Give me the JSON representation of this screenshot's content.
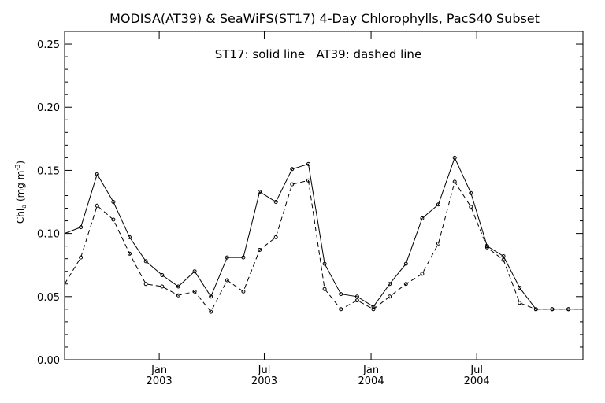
{
  "chart_data": {
    "type": "line",
    "title": "MODISA(AT39) & SeaWiFS(ST17) 4-Day Chlorophylls, PacS40 Subset",
    "annotation": "ST17: solid line   AT39: dashed line",
    "ylabel": {
      "main": "Chl",
      "sub": "a",
      "mid": " (mg m",
      "sup": "-3",
      "end": ")"
    },
    "ylim": [
      0.0,
      0.26
    ],
    "yticks": [
      "0.00",
      "0.05",
      "0.10",
      "0.15",
      "0.20",
      "0.25"
    ],
    "xlim": [
      "2002-07-22",
      "2004-12-31"
    ],
    "xticks": [
      {
        "date": "2003-01-01",
        "month": "Jan",
        "year": "2003"
      },
      {
        "date": "2003-07-01",
        "month": "Jul",
        "year": "2003"
      },
      {
        "date": "2004-01-01",
        "month": "Jan",
        "year": "2004"
      },
      {
        "date": "2004-07-01",
        "month": "Jul",
        "year": "2004"
      }
    ],
    "grid": false,
    "series": [
      {
        "name": "ST17",
        "color": "#000000",
        "dash": "solid",
        "x": [
          "2002-07-22",
          "2002-08-19",
          "2002-09-16",
          "2002-10-14",
          "2002-11-11",
          "2002-12-09",
          "2003-01-06",
          "2003-02-03",
          "2003-03-03",
          "2003-03-31",
          "2003-04-28",
          "2003-05-26",
          "2003-06-23",
          "2003-07-21",
          "2003-08-18",
          "2003-09-15",
          "2003-10-13",
          "2003-11-10",
          "2003-12-08",
          "2004-01-05",
          "2004-02-02",
          "2004-03-01",
          "2004-03-29",
          "2004-04-26",
          "2004-05-24",
          "2004-06-21",
          "2004-07-19",
          "2004-08-16",
          "2004-09-13",
          "2004-10-11",
          "2004-11-08",
          "2004-12-06",
          "2004-12-31"
        ],
        "values": [
          0.1,
          0.105,
          0.147,
          0.125,
          0.097,
          0.078,
          0.067,
          0.058,
          0.07,
          0.05,
          0.081,
          0.081,
          0.133,
          0.125,
          0.151,
          0.155,
          0.076,
          0.052,
          0.05,
          0.042,
          0.06,
          0.076,
          0.112,
          0.123,
          0.16,
          0.132,
          0.09,
          0.082,
          0.057,
          0.04,
          0.04,
          0.04,
          0.04
        ]
      },
      {
        "name": "AT39",
        "color": "#000000",
        "dash": "dashed",
        "x": [
          "2002-07-22",
          "2002-08-19",
          "2002-09-16",
          "2002-10-14",
          "2002-11-11",
          "2002-12-09",
          "2003-01-06",
          "2003-02-03",
          "2003-03-03",
          "2003-03-31",
          "2003-04-28",
          "2003-05-26",
          "2003-06-23",
          "2003-07-21",
          "2003-08-18",
          "2003-09-15",
          "2003-10-13",
          "2003-11-10",
          "2003-12-08",
          "2004-01-05",
          "2004-02-02",
          "2004-03-01",
          "2004-03-29",
          "2004-04-26",
          "2004-05-24",
          "2004-06-21",
          "2004-07-19",
          "2004-08-16",
          "2004-09-13",
          "2004-10-11",
          "2004-11-08",
          "2004-12-06",
          "2004-12-31"
        ],
        "values": [
          0.06,
          0.081,
          0.122,
          0.111,
          0.084,
          0.06,
          0.058,
          0.051,
          0.054,
          0.038,
          0.063,
          0.054,
          0.087,
          0.097,
          0.139,
          0.142,
          0.056,
          0.04,
          0.047,
          0.04,
          0.05,
          0.06,
          0.068,
          0.092,
          0.141,
          0.121,
          0.089,
          0.079,
          0.045,
          0.04,
          0.04,
          0.04,
          0.04
        ]
      }
    ]
  }
}
